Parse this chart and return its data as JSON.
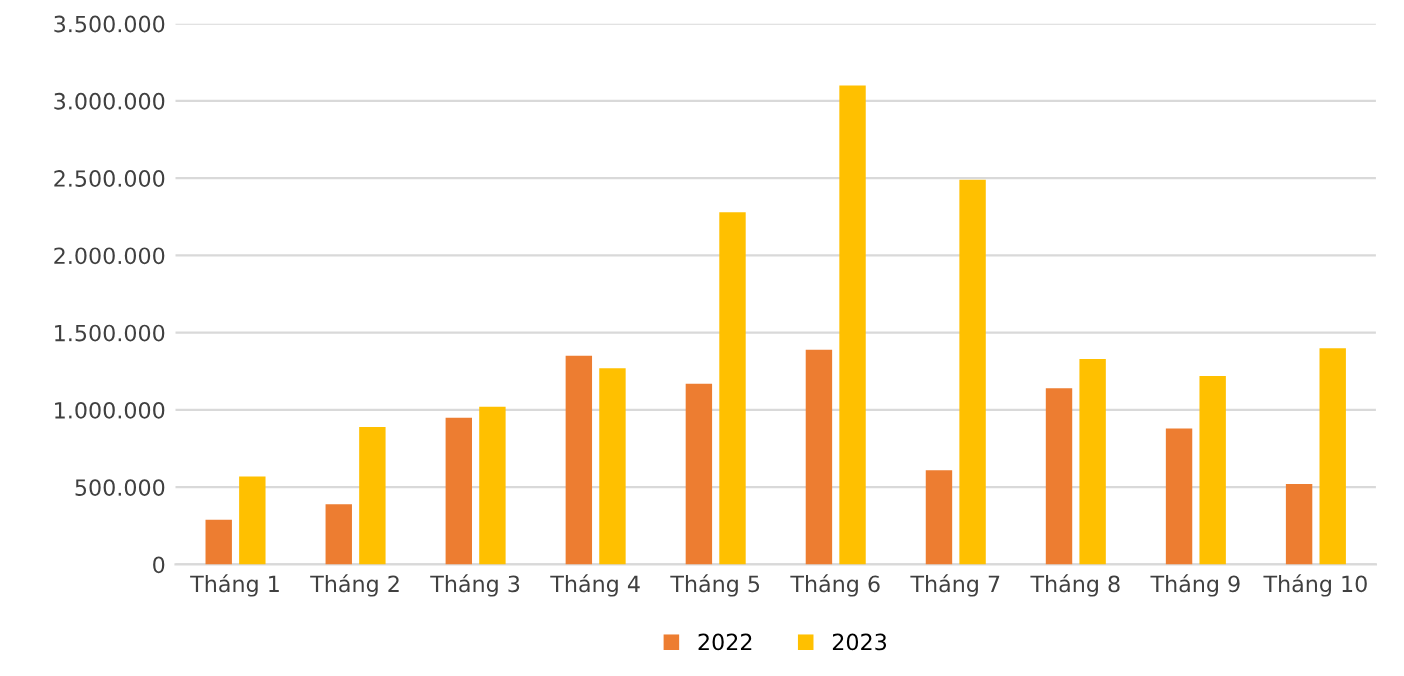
{
  "chart_data": {
    "type": "bar",
    "categories": [
      "Tháng 1",
      "Tháng 2",
      "Tháng 3",
      "Tháng 4",
      "Tháng 5",
      "Tháng 6",
      "Tháng 7",
      "Tháng 8",
      "Tháng 9",
      "Tháng 10"
    ],
    "series": [
      {
        "name": "2022",
        "color": "#ed7d31",
        "values": [
          290000,
          390000,
          950000,
          1350000,
          1170000,
          1390000,
          610000,
          1140000,
          880000,
          520000
        ]
      },
      {
        "name": "2023",
        "color": "#ffc000",
        "values": [
          570000,
          890000,
          1020000,
          1270000,
          2280000,
          3100000,
          2490000,
          1330000,
          1220000,
          1400000
        ]
      }
    ],
    "ylim": [
      0,
      3500000
    ],
    "yticks": [
      {
        "value": 0,
        "label": "0"
      },
      {
        "value": 500000,
        "label": "500.000"
      },
      {
        "value": 1000000,
        "label": "1.000.000"
      },
      {
        "value": 1500000,
        "label": "1.500.000"
      },
      {
        "value": 2000000,
        "label": "2.000.000"
      },
      {
        "value": 2500000,
        "label": "2.500.000"
      },
      {
        "value": 3000000,
        "label": "3.000.000"
      },
      {
        "value": 3500000,
        "label": "3.500.000"
      }
    ],
    "grid": "y",
    "legend": "bottom"
  }
}
